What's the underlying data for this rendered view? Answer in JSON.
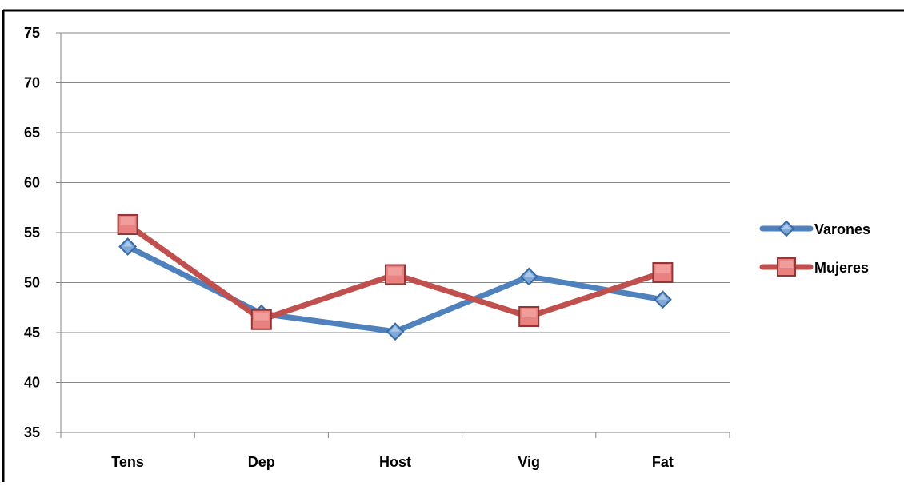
{
  "chart_data": {
    "type": "line",
    "categories": [
      "Tens",
      "Dep",
      "Host",
      "Vig",
      "Fat"
    ],
    "series": [
      {
        "name": "Varones",
        "values": [
          53.6,
          46.9,
          45.1,
          50.6,
          48.3
        ],
        "color": "#4f81bd",
        "marker": "diamond"
      },
      {
        "name": "Mujeres",
        "values": [
          55.8,
          46.3,
          50.8,
          46.6,
          51.0
        ],
        "color": "#c0504d",
        "marker": "square"
      }
    ],
    "ylim": [
      35,
      75
    ],
    "yticks": [
      35,
      40,
      45,
      50,
      55,
      60,
      65,
      70,
      75
    ],
    "grid": true,
    "legend_position": "right",
    "title": "",
    "xlabel": "",
    "ylabel": ""
  }
}
